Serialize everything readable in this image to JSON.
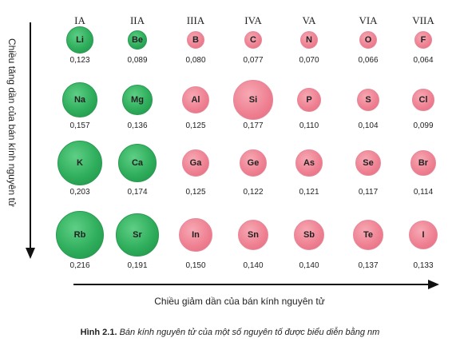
{
  "groups": [
    "IA",
    "IIA",
    "IIIA",
    "IVA",
    "VA",
    "VIA",
    "VIIA"
  ],
  "rows": [
    [
      {
        "symbol": "Li",
        "radius": "0,123",
        "value": 0.123,
        "type": "metal"
      },
      {
        "symbol": "Be",
        "radius": "0,089",
        "value": 0.089,
        "type": "metal"
      },
      {
        "symbol": "B",
        "radius": "0,080",
        "value": 0.08,
        "type": "nonmetal"
      },
      {
        "symbol": "C",
        "radius": "0,077",
        "value": 0.077,
        "type": "nonmetal"
      },
      {
        "symbol": "N",
        "radius": "0,070",
        "value": 0.07,
        "type": "nonmetal"
      },
      {
        "symbol": "O",
        "radius": "0,066",
        "value": 0.066,
        "type": "nonmetal"
      },
      {
        "symbol": "F",
        "radius": "0,064",
        "value": 0.064,
        "type": "nonmetal"
      }
    ],
    [
      {
        "symbol": "Na",
        "radius": "0,157",
        "value": 0.157,
        "type": "metal"
      },
      {
        "symbol": "Mg",
        "radius": "0,136",
        "value": 0.136,
        "type": "metal"
      },
      {
        "symbol": "Al",
        "radius": "0,125",
        "value": 0.125,
        "type": "nonmetal"
      },
      {
        "symbol": "Si",
        "radius": "0,177",
        "value": 0.177,
        "type": "nonmetal"
      },
      {
        "symbol": "P",
        "radius": "0,110",
        "value": 0.11,
        "type": "nonmetal"
      },
      {
        "symbol": "S",
        "radius": "0,104",
        "value": 0.104,
        "type": "nonmetal"
      },
      {
        "symbol": "Cl",
        "radius": "0,099",
        "value": 0.099,
        "type": "nonmetal"
      }
    ],
    [
      {
        "symbol": "K",
        "radius": "0,203",
        "value": 0.203,
        "type": "metal"
      },
      {
        "symbol": "Ca",
        "radius": "0,174",
        "value": 0.174,
        "type": "metal"
      },
      {
        "symbol": "Ga",
        "radius": "0,125",
        "value": 0.125,
        "type": "nonmetal"
      },
      {
        "symbol": "Ge",
        "radius": "0,122",
        "value": 0.122,
        "type": "nonmetal"
      },
      {
        "symbol": "As",
        "radius": "0,121",
        "value": 0.121,
        "type": "nonmetal"
      },
      {
        "symbol": "Se",
        "radius": "0,117",
        "value": 0.117,
        "type": "nonmetal"
      },
      {
        "symbol": "Br",
        "radius": "0,114",
        "value": 0.114,
        "type": "nonmetal"
      }
    ],
    [
      {
        "symbol": "Rb",
        "radius": "0,216",
        "value": 0.216,
        "type": "metal"
      },
      {
        "symbol": "Sr",
        "radius": "0,191",
        "value": 0.191,
        "type": "metal"
      },
      {
        "symbol": "In",
        "radius": "0,150",
        "value": 0.15,
        "type": "nonmetal"
      },
      {
        "symbol": "Sn",
        "radius": "0,140",
        "value": 0.14,
        "type": "nonmetal"
      },
      {
        "symbol": "Sb",
        "radius": "0,140",
        "value": 0.14,
        "type": "nonmetal"
      },
      {
        "symbol": "Te",
        "radius": "0,137",
        "value": 0.137,
        "type": "nonmetal"
      },
      {
        "symbol": "I",
        "radius": "0,133",
        "value": 0.133,
        "type": "nonmetal"
      }
    ]
  ],
  "axes": {
    "vertical_label": "Chiều tăng dần của bán kính nguyên tử",
    "horizontal_label": "Chiều giảm dần của bán kính nguyên tử"
  },
  "caption": {
    "label": "Hình 2.1.",
    "text": "Bán kính nguyên tử của một số nguyên tố được biểu diễn bằng nm"
  },
  "colors": {
    "metal": "#2fae5c",
    "nonmetal": "#ee7f91",
    "arrow": "#111111"
  }
}
